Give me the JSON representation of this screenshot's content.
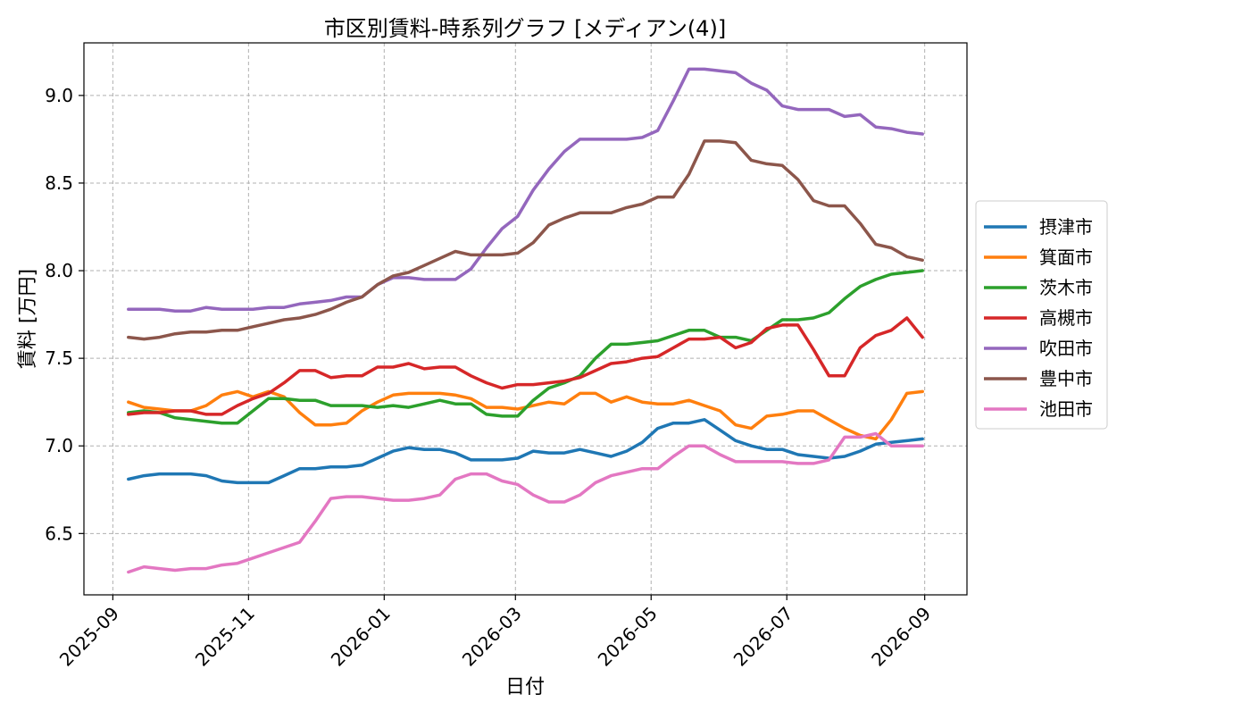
{
  "chart_data": {
    "type": "line",
    "title": "市区別賃料-時系列グラフ [メディアン(4)]",
    "xlabel": "日付",
    "ylabel": "賃料 [万円]",
    "xlim": [
      "2025-08-19",
      "2026-09-20"
    ],
    "ylim": [
      6.15,
      9.3
    ],
    "xticks": [
      "2025-09-01",
      "2025-11-01",
      "2026-01-01",
      "2026-03-01",
      "2026-05-01",
      "2026-07-01",
      "2026-09-01"
    ],
    "xtick_labels": [
      "2025-09",
      "2025-11",
      "2026-01",
      "2026-03",
      "2026-05",
      "2026-07",
      "2026-09"
    ],
    "yticks": [
      6.5,
      7.0,
      7.5,
      8.0,
      8.5,
      9.0
    ],
    "ytick_labels": [
      "6.5",
      "7.0",
      "7.5",
      "8.0",
      "8.5",
      "9.0"
    ],
    "grid": true,
    "legend_position": "right-outside",
    "x": [
      "2025-09-08",
      "2025-09-15",
      "2025-09-22",
      "2025-09-29",
      "2025-10-06",
      "2025-10-13",
      "2025-10-20",
      "2025-10-27",
      "2025-11-03",
      "2025-11-10",
      "2025-11-17",
      "2025-11-24",
      "2025-12-01",
      "2025-12-08",
      "2025-12-15",
      "2025-12-22",
      "2025-12-29",
      "2026-01-05",
      "2026-01-12",
      "2026-01-19",
      "2026-01-26",
      "2026-02-02",
      "2026-02-09",
      "2026-02-16",
      "2026-02-23",
      "2026-03-02",
      "2026-03-09",
      "2026-03-16",
      "2026-03-23",
      "2026-03-30",
      "2026-04-06",
      "2026-04-13",
      "2026-04-20",
      "2026-04-27",
      "2026-05-04",
      "2026-05-11",
      "2026-05-18",
      "2026-05-25",
      "2026-06-01",
      "2026-06-08",
      "2026-06-15",
      "2026-06-22",
      "2026-06-29",
      "2026-07-06",
      "2026-07-13",
      "2026-07-20",
      "2026-07-27",
      "2026-08-03",
      "2026-08-10",
      "2026-08-17",
      "2026-08-24",
      "2026-08-31"
    ],
    "series": [
      {
        "name": "摂津市",
        "color": "#1f77b4",
        "values": [
          6.81,
          6.83,
          6.84,
          6.84,
          6.84,
          6.83,
          6.8,
          6.79,
          6.79,
          6.79,
          6.83,
          6.87,
          6.87,
          6.88,
          6.88,
          6.89,
          6.93,
          6.97,
          6.99,
          6.98,
          6.98,
          6.96,
          6.92,
          6.92,
          6.92,
          6.93,
          6.97,
          6.96,
          6.96,
          6.98,
          6.96,
          6.94,
          6.97,
          7.02,
          7.1,
          7.13,
          7.13,
          7.15,
          7.09,
          7.03,
          7.0,
          6.98,
          6.98,
          6.95,
          6.94,
          6.93,
          6.94,
          6.97,
          7.01,
          7.02,
          7.03,
          7.04
        ]
      },
      {
        "name": "箕面市",
        "color": "#ff7f0e",
        "values": [
          7.25,
          7.22,
          7.21,
          7.2,
          7.2,
          7.23,
          7.29,
          7.31,
          7.28,
          7.31,
          7.28,
          7.19,
          7.12,
          7.12,
          7.13,
          7.2,
          7.25,
          7.29,
          7.3,
          7.3,
          7.3,
          7.29,
          7.27,
          7.22,
          7.22,
          7.21,
          7.23,
          7.25,
          7.24,
          7.3,
          7.3,
          7.25,
          7.28,
          7.25,
          7.24,
          7.24,
          7.26,
          7.23,
          7.2,
          7.12,
          7.1,
          7.17,
          7.18,
          7.2,
          7.2,
          7.15,
          7.1,
          7.06,
          7.04,
          7.15,
          7.3,
          7.31
        ]
      },
      {
        "name": "茨木市",
        "color": "#2ca02c",
        "values": [
          7.19,
          7.2,
          7.19,
          7.16,
          7.15,
          7.14,
          7.13,
          7.13,
          7.2,
          7.27,
          7.27,
          7.26,
          7.26,
          7.23,
          7.23,
          7.23,
          7.22,
          7.23,
          7.22,
          7.24,
          7.26,
          7.24,
          7.24,
          7.18,
          7.17,
          7.17,
          7.26,
          7.33,
          7.36,
          7.4,
          7.5,
          7.58,
          7.58,
          7.59,
          7.6,
          7.63,
          7.66,
          7.66,
          7.62,
          7.62,
          7.6,
          7.66,
          7.72,
          7.72,
          7.73,
          7.76,
          7.84,
          7.91,
          7.95,
          7.98,
          7.99,
          8.0
        ]
      },
      {
        "name": "高槻市",
        "color": "#d62728",
        "values": [
          7.18,
          7.19,
          7.19,
          7.2,
          7.2,
          7.18,
          7.18,
          7.23,
          7.27,
          7.3,
          7.36,
          7.43,
          7.43,
          7.39,
          7.4,
          7.4,
          7.45,
          7.45,
          7.47,
          7.44,
          7.45,
          7.45,
          7.4,
          7.36,
          7.33,
          7.35,
          7.35,
          7.36,
          7.37,
          7.39,
          7.43,
          7.47,
          7.48,
          7.5,
          7.51,
          7.56,
          7.61,
          7.61,
          7.62,
          7.56,
          7.59,
          7.67,
          7.69,
          7.69,
          7.55,
          7.4,
          7.4,
          7.56,
          7.63,
          7.66,
          7.73,
          7.62
        ]
      },
      {
        "name": "吹田市",
        "color": "#9467bd",
        "values": [
          7.78,
          7.78,
          7.78,
          7.77,
          7.77,
          7.79,
          7.78,
          7.78,
          7.78,
          7.79,
          7.79,
          7.81,
          7.82,
          7.83,
          7.85,
          7.85,
          7.92,
          7.96,
          7.96,
          7.95,
          7.95,
          7.95,
          8.01,
          8.13,
          8.24,
          8.31,
          8.46,
          8.58,
          8.68,
          8.75,
          8.75,
          8.75,
          8.75,
          8.76,
          8.8,
          8.97,
          9.15,
          9.15,
          9.14,
          9.13,
          9.07,
          9.03,
          8.94,
          8.92,
          8.92,
          8.92,
          8.88,
          8.89,
          8.82,
          8.81,
          8.79,
          8.78
        ]
      },
      {
        "name": "豊中市",
        "color": "#8c564b",
        "values": [
          7.62,
          7.61,
          7.62,
          7.64,
          7.65,
          7.65,
          7.66,
          7.66,
          7.68,
          7.7,
          7.72,
          7.73,
          7.75,
          7.78,
          7.82,
          7.85,
          7.92,
          7.97,
          7.99,
          8.03,
          8.07,
          8.11,
          8.09,
          8.09,
          8.09,
          8.1,
          8.16,
          8.26,
          8.3,
          8.33,
          8.33,
          8.33,
          8.36,
          8.38,
          8.42,
          8.42,
          8.55,
          8.74,
          8.74,
          8.73,
          8.63,
          8.61,
          8.6,
          8.52,
          8.4,
          8.37,
          8.37,
          8.27,
          8.15,
          8.13,
          8.08,
          8.06
        ]
      },
      {
        "name": "池田市",
        "color": "#e377c2",
        "values": [
          6.28,
          6.31,
          6.3,
          6.29,
          6.3,
          6.3,
          6.32,
          6.33,
          6.36,
          6.39,
          6.42,
          6.45,
          6.57,
          6.7,
          6.71,
          6.71,
          6.7,
          6.69,
          6.69,
          6.7,
          6.72,
          6.81,
          6.84,
          6.84,
          6.8,
          6.78,
          6.72,
          6.68,
          6.68,
          6.72,
          6.79,
          6.83,
          6.85,
          6.87,
          6.87,
          6.94,
          7.0,
          7.0,
          6.95,
          6.91,
          6.91,
          6.91,
          6.91,
          6.9,
          6.9,
          6.92,
          7.05,
          7.05,
          7.07,
          7.0,
          7.0,
          7.0
        ]
      }
    ]
  }
}
